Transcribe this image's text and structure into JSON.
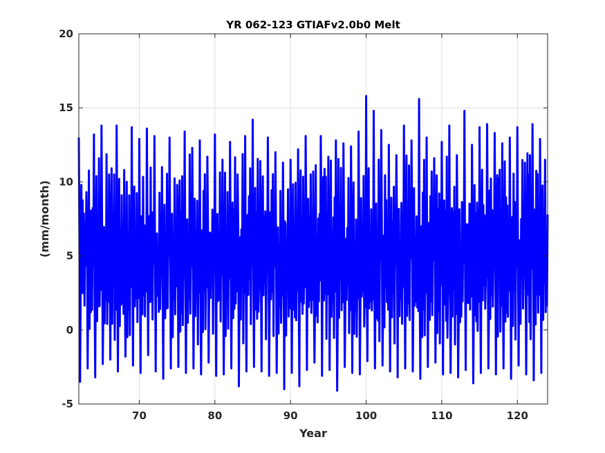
{
  "chart_data": {
    "type": "line",
    "title": "YR 062-123 GTIAFv2.0b0 Melt",
    "xlabel": "Year",
    "ylabel": "(mm/month)",
    "xlim": [
      62,
      124
    ],
    "ylim": [
      -5,
      20
    ],
    "xticks": [
      70,
      80,
      90,
      100,
      110,
      120
    ],
    "yticks": [
      -5,
      0,
      5,
      10,
      15,
      20
    ],
    "xtick_labels": [
      "70",
      "80",
      "90",
      "100",
      "110",
      "120"
    ],
    "ytick_labels": [
      "-5",
      "0",
      "5",
      "10",
      "15",
      "20"
    ],
    "grid": true,
    "legend": "none",
    "series": [
      {
        "color": "#0000ff",
        "note_sampling": "monthly values, years 62-123",
        "annual_peaks": [
          13.0,
          9.3,
          13.2,
          13.8,
          10.5,
          13.8,
          10.8,
          13.7,
          12.9,
          13.6,
          13.1,
          11.0,
          13.0,
          9.8,
          13.4,
          12.3,
          12.8,
          11.7,
          13.2,
          11.5,
          12.7,
          10.5,
          13.1,
          14.2,
          11.4,
          13.0,
          12.0,
          11.3,
          11.5,
          12.2,
          13.1,
          10.7,
          13.1,
          11.7,
          12.8,
          12.6,
          12.4,
          13.4,
          15.8,
          14.8,
          13.5,
          12.5,
          11.8,
          13.8,
          12.8,
          15.6,
          13.0,
          11.6,
          12.7,
          13.8,
          11.8,
          14.8,
          12.5,
          13.7,
          13.9,
          13.3,
          12.6,
          13.0,
          13.7,
          11.3,
          13.9,
          12.9
        ],
        "annual_troughs": [
          -3.5,
          -2.6,
          -3.2,
          -2.3,
          -2.0,
          -2.8,
          -1.8,
          -2.4,
          -2.9,
          -1.7,
          -2.8,
          -3.3,
          -2.6,
          -2.5,
          -2.9,
          -2.6,
          -3.0,
          -2.2,
          -3.1,
          -3.0,
          -2.6,
          -3.8,
          -2.8,
          -2.5,
          -2.8,
          -3.1,
          -2.9,
          -4.0,
          -2.9,
          -3.8,
          -2.7,
          -2.2,
          -3.1,
          -2.7,
          -4.1,
          -2.5,
          -2.9,
          -3.0,
          -2.1,
          -2.6,
          -2.4,
          -2.8,
          -3.2,
          -2.6,
          -2.8,
          -3.3,
          -2.5,
          -2.2,
          -3.0,
          -2.9,
          -3.2,
          -2.7,
          -3.6,
          -2.9,
          -2.6,
          -3.0,
          -2.6,
          -3.3,
          -2.4,
          -3.0,
          -3.4,
          -2.9
        ]
      }
    ]
  }
}
